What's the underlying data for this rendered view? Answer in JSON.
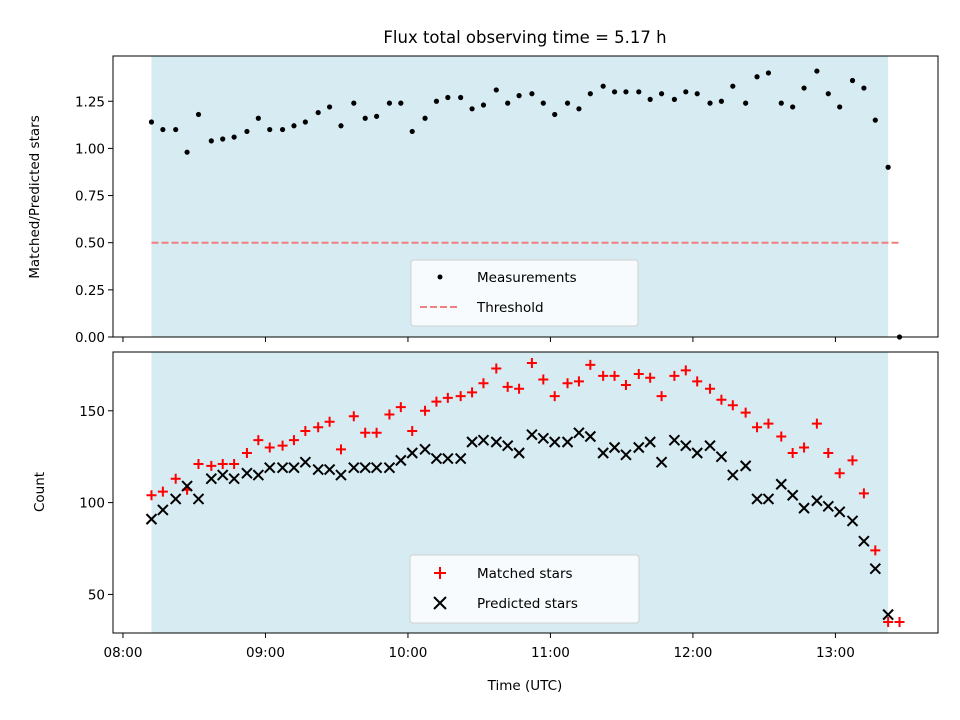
{
  "chart_data": [
    {
      "type": "scatter",
      "title": "Flux total observing time = 5.17 h",
      "xlabel": "",
      "ylabel": "Matched/Predicted stars",
      "xlim": [
        7.93,
        13.72
      ],
      "ylim": [
        0,
        1.49
      ],
      "yticks": [
        0.0,
        0.25,
        0.5,
        0.75,
        1.0,
        1.25
      ],
      "ytick_labels": [
        "0.00",
        "0.25",
        "0.50",
        "0.75",
        "1.00",
        "1.25"
      ],
      "xticks": [
        8,
        9,
        10,
        11,
        12,
        13
      ],
      "observing_window": {
        "start": 8.2,
        "end": 13.37,
        "color": "#add8e6"
      },
      "legend_loc": "lower center",
      "series": [
        {
          "name": "Measurements",
          "marker": "dot",
          "color": "#000000",
          "x": [
            8.2,
            8.28,
            8.37,
            8.45,
            8.53,
            8.62,
            8.7,
            8.78,
            8.87,
            8.95,
            9.03,
            9.12,
            9.2,
            9.28,
            9.37,
            9.45,
            9.53,
            9.62,
            9.7,
            9.78,
            9.87,
            9.95,
            10.03,
            10.12,
            10.2,
            10.28,
            10.37,
            10.45,
            10.53,
            10.62,
            10.7,
            10.78,
            10.87,
            10.95,
            11.03,
            11.12,
            11.2,
            11.28,
            11.37,
            11.45,
            11.53,
            11.62,
            11.7,
            11.78,
            11.87,
            11.95,
            12.03,
            12.12,
            12.2,
            12.28,
            12.37,
            12.45,
            12.53,
            12.62,
            12.7,
            12.78,
            12.87,
            12.95,
            13.03,
            13.12,
            13.2,
            13.28,
            13.37,
            13.45
          ],
          "y": [
            1.14,
            1.1,
            1.1,
            0.98,
            1.18,
            1.04,
            1.05,
            1.06,
            1.09,
            1.16,
            1.1,
            1.1,
            1.12,
            1.14,
            1.19,
            1.22,
            1.12,
            1.24,
            1.16,
            1.17,
            1.24,
            1.24,
            1.09,
            1.16,
            1.25,
            1.27,
            1.27,
            1.21,
            1.23,
            1.31,
            1.24,
            1.28,
            1.29,
            1.24,
            1.18,
            1.24,
            1.21,
            1.29,
            1.33,
            1.3,
            1.3,
            1.3,
            1.26,
            1.29,
            1.26,
            1.3,
            1.29,
            1.24,
            1.25,
            1.33,
            1.24,
            1.38,
            1.4,
            1.24,
            1.22,
            1.32,
            1.41,
            1.29,
            1.22,
            1.36,
            1.32,
            1.15,
            0.9,
            0.0
          ]
        },
        {
          "name": "Threshold",
          "marker": "dashed-line",
          "color": "#f08080",
          "x": [
            8.2,
            13.45
          ],
          "y": [
            0.5,
            0.5
          ]
        }
      ]
    },
    {
      "type": "scatter",
      "title": "",
      "xlabel": "Time (UTC)",
      "ylabel": "Count",
      "xlim": [
        7.93,
        13.72
      ],
      "ylim": [
        29,
        182
      ],
      "yticks": [
        50,
        100,
        150
      ],
      "ytick_labels": [
        "50",
        "100",
        "150"
      ],
      "xticks": [
        8,
        9,
        10,
        11,
        12,
        13
      ],
      "xtick_labels": [
        "08:00",
        "09:00",
        "10:00",
        "11:00",
        "12:00",
        "13:00"
      ],
      "observing_window": {
        "start": 8.2,
        "end": 13.37,
        "color": "#add8e6"
      },
      "legend_loc": "lower center",
      "series": [
        {
          "name": "Matched stars",
          "marker": "plus",
          "color": "#ff0000",
          "x": [
            8.2,
            8.28,
            8.37,
            8.45,
            8.53,
            8.62,
            8.7,
            8.78,
            8.87,
            8.95,
            9.03,
            9.12,
            9.2,
            9.28,
            9.37,
            9.45,
            9.53,
            9.62,
            9.7,
            9.78,
            9.87,
            9.95,
            10.03,
            10.12,
            10.2,
            10.28,
            10.37,
            10.45,
            10.53,
            10.62,
            10.7,
            10.78,
            10.87,
            10.95,
            11.03,
            11.12,
            11.2,
            11.28,
            11.37,
            11.45,
            11.53,
            11.62,
            11.7,
            11.78,
            11.87,
            11.95,
            12.03,
            12.12,
            12.2,
            12.28,
            12.37,
            12.45,
            12.53,
            12.62,
            12.7,
            12.78,
            12.87,
            12.95,
            13.03,
            13.12,
            13.2,
            13.28,
            13.37,
            13.45
          ],
          "y": [
            104,
            106,
            113,
            107,
            121,
            120,
            121,
            121,
            127,
            134,
            130,
            131,
            134,
            139,
            141,
            144,
            129,
            147,
            138,
            138,
            148,
            152,
            139,
            150,
            155,
            157,
            158,
            160,
            165,
            173,
            163,
            162,
            176,
            167,
            158,
            165,
            166,
            175,
            169,
            169,
            164,
            170,
            168,
            158,
            169,
            172,
            166,
            162,
            156,
            153,
            149,
            141,
            143,
            136,
            127,
            130,
            143,
            127,
            116,
            123,
            105,
            74,
            35,
            35
          ]
        },
        {
          "name": "Predicted stars",
          "marker": "x",
          "color": "#000000",
          "x": [
            8.2,
            8.28,
            8.37,
            8.45,
            8.53,
            8.62,
            8.7,
            8.78,
            8.87,
            8.95,
            9.03,
            9.12,
            9.2,
            9.28,
            9.37,
            9.45,
            9.53,
            9.62,
            9.7,
            9.78,
            9.87,
            9.95,
            10.03,
            10.12,
            10.2,
            10.28,
            10.37,
            10.45,
            10.53,
            10.62,
            10.7,
            10.78,
            10.87,
            10.95,
            11.03,
            11.12,
            11.2,
            11.28,
            11.37,
            11.45,
            11.53,
            11.62,
            11.7,
            11.78,
            11.87,
            11.95,
            12.03,
            12.12,
            12.2,
            12.28,
            12.37,
            12.45,
            12.53,
            12.62,
            12.7,
            12.78,
            12.87,
            12.95,
            13.03,
            13.12,
            13.2,
            13.28,
            13.37
          ],
          "y": [
            91,
            96,
            102,
            109,
            102,
            113,
            115,
            113,
            116,
            115,
            119,
            119,
            119,
            122,
            118,
            118,
            115,
            119,
            119,
            119,
            119,
            123,
            127,
            129,
            124,
            124,
            124,
            133,
            134,
            133,
            131,
            127,
            137,
            135,
            133,
            133,
            138,
            136,
            127,
            130,
            126,
            130,
            133,
            122,
            134,
            131,
            127,
            131,
            125,
            115,
            120,
            102,
            102,
            110,
            104,
            97,
            101,
            98,
            95,
            90,
            79,
            64,
            39
          ]
        }
      ]
    }
  ]
}
